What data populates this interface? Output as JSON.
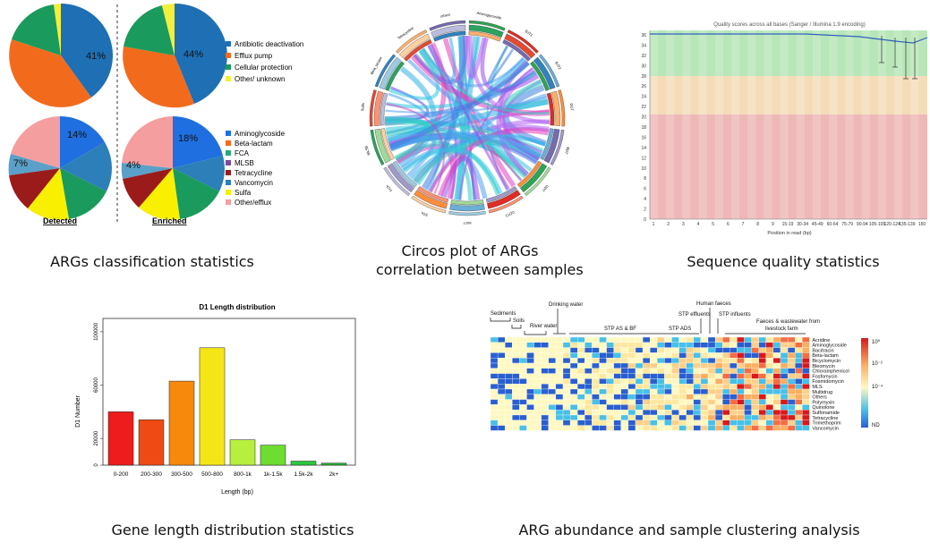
{
  "captions": {
    "classification": "ARGs classification statistics",
    "circos_line1": "Circos plot of ARGs",
    "circos_line2": "correlation between samples",
    "quality": "Sequence quality statistics",
    "length": "Gene length distribution statistics",
    "heatmap": "ARG abundance and sample clustering analysis"
  },
  "pies": {
    "top_legend": [
      {
        "label": "Antibiotic deactivation",
        "color": "#1f6fb4"
      },
      {
        "label": "Efflux pump",
        "color": "#f26b1d"
      },
      {
        "label": "Cellular protection",
        "color": "#1a9a5c"
      },
      {
        "label": "Other/ unknown",
        "color": "#f4ee3c"
      }
    ],
    "bottom_legend": [
      {
        "label": "Aminoglycoside",
        "color": "#1f6fe0"
      },
      {
        "label": "Beta-lactam",
        "color": "#f26b1d"
      },
      {
        "label": "FCA",
        "color": "#2aa87a"
      },
      {
        "label": "MLSB",
        "color": "#7a4aa0"
      },
      {
        "label": "Tetracycline",
        "color": "#9b1b1b"
      },
      {
        "label": "Vancomycin",
        "color": "#2c7fb8"
      },
      {
        "label": "Sulfa",
        "color": "#f8f000"
      },
      {
        "label": "Other/efflux",
        "color": "#f59ea0"
      }
    ],
    "top_detected_label": "41%",
    "top_enriched_label": "44%",
    "bottom_detected_label": "14%",
    "bottom_detected_label2": "7%",
    "bottom_enriched_label": "18%",
    "bottom_enriched_label2": "4%",
    "detected": "Detected",
    "enriched": "Enriched"
  },
  "circos": {
    "labels": [
      "Aminoglycoside",
      "BJT1",
      "BJT2",
      "DGT",
      "BDT",
      "GDT",
      "GDT2",
      "MGT",
      "STK",
      "FCA",
      "MLSB",
      "Sulfa",
      "Beta_lactam",
      "Tetracycline",
      "others"
    ]
  },
  "quality_chart": {
    "title": "Quality scores across all bases (Sanger / Illumina 1.9 encoding)",
    "xlabel": "Position in read (bp)",
    "yticks": [
      "36",
      "34",
      "32",
      "30",
      "28",
      "26",
      "24",
      "22",
      "20",
      "18",
      "16",
      "14",
      "12",
      "10",
      "8",
      "6",
      "4",
      "2",
      "0"
    ],
    "xticks": [
      "1",
      "2",
      "3",
      "4",
      "5",
      "6",
      "7",
      "8",
      "9",
      "15-19",
      "30-34",
      "45-49",
      "60-64",
      "75-79",
      "90-94",
      "105-109",
      "120-124",
      "135-139",
      "150"
    ]
  },
  "chart_data": {
    "type": "bar",
    "title": "D1 Length distribution",
    "xlabel": "Length (bp)",
    "ylabel": "D1 Number",
    "categories": [
      "0-200",
      "200-300",
      "300-500",
      "500-800",
      "800-1k",
      "1k-1.5k",
      "1.5k-2k",
      "2k+"
    ],
    "values": [
      40000,
      34000,
      63000,
      88000,
      19000,
      15000,
      3000,
      1500
    ],
    "ylim": [
      0,
      110000
    ],
    "yticks": [
      "0",
      "20000",
      "60000",
      "100000"
    ],
    "colors": [
      "#ee1c1c",
      "#f04a14",
      "#f78a0c",
      "#f4e616",
      "#b8ee3e",
      "#6edc30",
      "#2cc83c",
      "#22b830"
    ]
  },
  "heatmap": {
    "groups": [
      "Sediments",
      "Soils",
      "River water",
      "Drinking water",
      "STP AS & BF",
      "STP ADS",
      "STP effluents",
      "Human faeces",
      "STP influents",
      "Faeces & wastewater from",
      "livestock farm"
    ],
    "rows": [
      "Acridine",
      "Aminoglycoside",
      "Bacitracin",
      "Beta-lactam",
      "Bicyclomycin",
      "Bleomycin",
      "Chloramphenicol",
      "Fosfomycin",
      "Fosmidomycin",
      "MLS",
      "Multidrug",
      "Others",
      "Polymyxin",
      "Quinolone",
      "Sulfonamide",
      "Tetracycline",
      "Trimethoprim",
      "Vancomycin"
    ],
    "legend": [
      "10⁰",
      "10⁻²",
      "10⁻⁴",
      "ND"
    ]
  }
}
